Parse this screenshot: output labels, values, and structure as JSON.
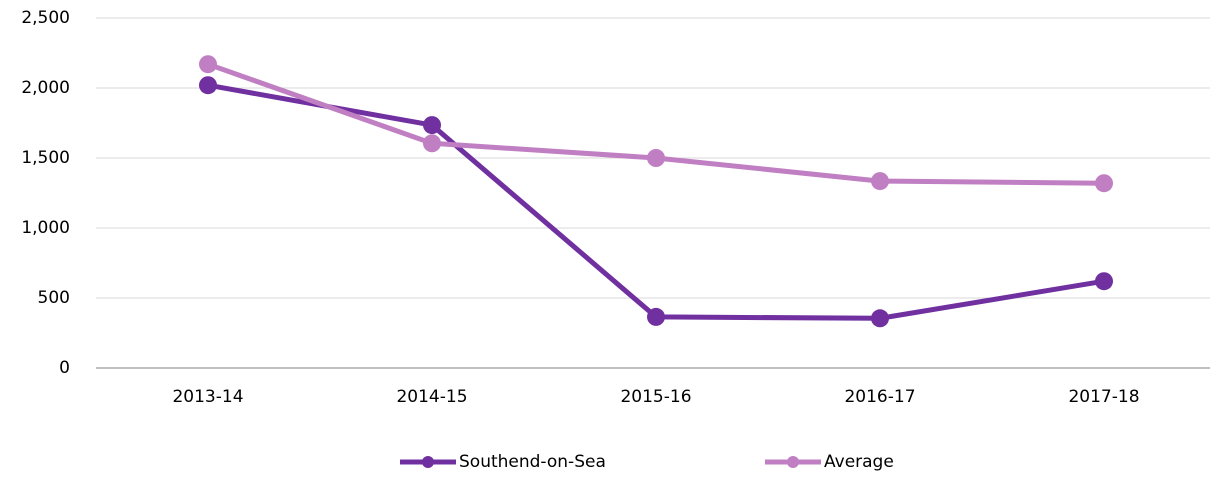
{
  "chart_data": {
    "type": "line",
    "categories": [
      "2013-14",
      "2014-15",
      "2015-16",
      "2016-17",
      "2017-18"
    ],
    "series": [
      {
        "name": "Southend-on-Sea",
        "color": "#7030a0",
        "values": [
          2020,
          1735,
          365,
          355,
          620
        ]
      },
      {
        "name": "Average",
        "color": "#c07fc3",
        "values": [
          2170,
          1605,
          1500,
          1335,
          1320
        ]
      }
    ],
    "ylim": [
      0,
      2500
    ],
    "yticks": [
      0,
      500,
      {
        "value": 1000,
        "label": "1,000"
      },
      {
        "value": 1500,
        "label": "1,500"
      },
      {
        "value": 2000,
        "label": "2,000"
      },
      {
        "value": 2500,
        "label": "2,500"
      }
    ],
    "grid": true,
    "legend": "bottom"
  }
}
